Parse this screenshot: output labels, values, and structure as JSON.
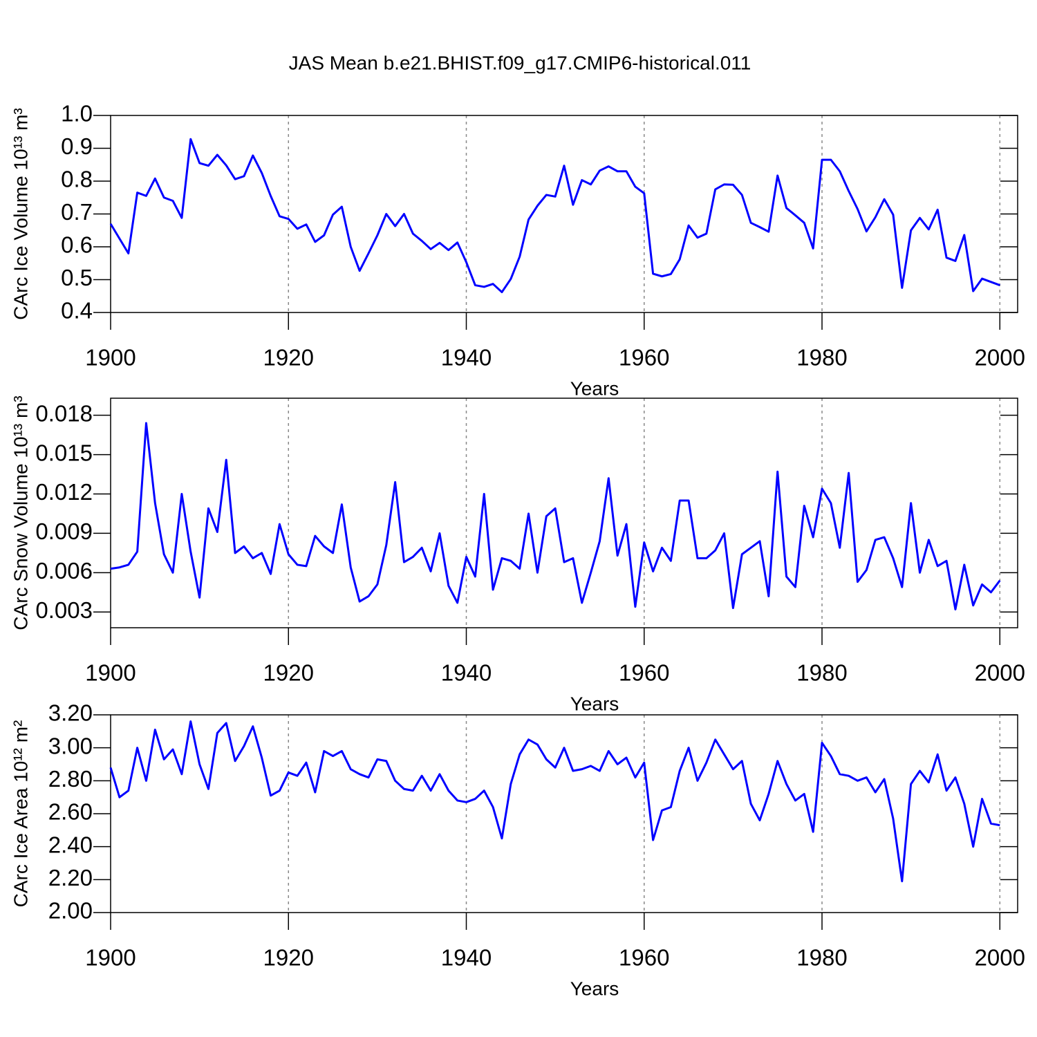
{
  "chart_data": [
    {
      "type": "line",
      "title": "JAS Mean b.e21.BHIST.f09_g17.CMIP6-historical.011",
      "ylabel": "CArc Ice Volume 10¹³ m³",
      "xlabel": "Years",
      "color": "#0000ff",
      "grid": "x",
      "x": [
        1900,
        1901,
        1902,
        1903,
        1904,
        1905,
        1906,
        1907,
        1908,
        1909,
        1910,
        1911,
        1912,
        1913,
        1914,
        1915,
        1916,
        1917,
        1918,
        1919,
        1920,
        1921,
        1922,
        1923,
        1924,
        1925,
        1926,
        1927,
        1928,
        1929,
        1930,
        1931,
        1932,
        1933,
        1934,
        1935,
        1936,
        1937,
        1938,
        1939,
        1940,
        1941,
        1942,
        1943,
        1944,
        1945,
        1946,
        1947,
        1948,
        1949,
        1950,
        1951,
        1952,
        1953,
        1954,
        1955,
        1956,
        1957,
        1958,
        1959,
        1960,
        1961,
        1962,
        1963,
        1964,
        1965,
        1966,
        1967,
        1968,
        1969,
        1970,
        1971,
        1972,
        1973,
        1974,
        1975,
        1976,
        1977,
        1978,
        1979,
        1980,
        1981,
        1982,
        1983,
        1984,
        1985,
        1986,
        1987,
        1988,
        1989,
        1990,
        1991,
        1992,
        1993,
        1994,
        1995,
        1996,
        1997,
        1998,
        1999,
        2000
      ],
      "values": [
        0.67,
        0.625,
        0.58,
        0.765,
        0.755,
        0.808,
        0.75,
        0.74,
        0.688,
        0.928,
        0.855,
        0.847,
        0.88,
        0.848,
        0.806,
        0.815,
        0.878,
        0.825,
        0.755,
        0.693,
        0.685,
        0.655,
        0.668,
        0.615,
        0.635,
        0.698,
        0.722,
        0.6,
        0.527,
        0.58,
        0.635,
        0.7,
        0.663,
        0.7,
        0.64,
        0.618,
        0.593,
        0.612,
        0.59,
        0.613,
        0.553,
        0.483,
        0.478,
        0.487,
        0.462,
        0.502,
        0.57,
        0.683,
        0.725,
        0.758,
        0.753,
        0.847,
        0.728,
        0.803,
        0.79,
        0.832,
        0.845,
        0.83,
        0.83,
        0.783,
        0.763,
        0.518,
        0.51,
        0.517,
        0.562,
        0.665,
        0.628,
        0.64,
        0.775,
        0.79,
        0.789,
        0.758,
        0.673,
        0.66,
        0.646,
        0.817,
        0.718,
        0.696,
        0.673,
        0.595,
        0.865,
        0.865,
        0.83,
        0.77,
        0.715,
        0.647,
        0.69,
        0.745,
        0.698,
        0.475,
        0.65,
        0.688,
        0.653,
        0.713,
        0.567,
        0.557,
        0.636,
        0.465,
        0.503,
        0.493,
        0.483
      ],
      "xlim": [
        1900,
        2002
      ],
      "xticks": [
        1900,
        1920,
        1940,
        1960,
        1980,
        2000
      ],
      "ylim": [
        0.4,
        1.0
      ],
      "yticks": [
        0.4,
        0.5,
        0.6,
        0.7,
        0.8,
        0.9,
        {
          "value": 1,
          "label": "1.0"
        }
      ]
    },
    {
      "type": "line",
      "ylabel": "CArc Snow Volume 10¹³ m³",
      "xlabel": "Years",
      "color": "#0000ff",
      "grid": "x",
      "x": [
        1900,
        1901,
        1902,
        1903,
        1904,
        1905,
        1906,
        1907,
        1908,
        1909,
        1910,
        1911,
        1912,
        1913,
        1914,
        1915,
        1916,
        1917,
        1918,
        1919,
        1920,
        1921,
        1922,
        1923,
        1924,
        1925,
        1926,
        1927,
        1928,
        1929,
        1930,
        1931,
        1932,
        1933,
        1934,
        1935,
        1936,
        1937,
        1938,
        1939,
        1940,
        1941,
        1942,
        1943,
        1944,
        1945,
        1946,
        1947,
        1948,
        1949,
        1950,
        1951,
        1952,
        1953,
        1954,
        1955,
        1956,
        1957,
        1958,
        1959,
        1960,
        1961,
        1962,
        1963,
        1964,
        1965,
        1966,
        1967,
        1968,
        1969,
        1970,
        1971,
        1972,
        1973,
        1974,
        1975,
        1976,
        1977,
        1978,
        1979,
        1980,
        1981,
        1982,
        1983,
        1984,
        1985,
        1986,
        1987,
        1988,
        1989,
        1990,
        1991,
        1992,
        1993,
        1994,
        1995,
        1996,
        1997,
        1998,
        1999,
        2000
      ],
      "values": [
        0.0063,
        0.0064,
        0.0066,
        0.0076,
        0.0174,
        0.0113,
        0.0074,
        0.006,
        0.012,
        0.0076,
        0.0041,
        0.0109,
        0.0091,
        0.0146,
        0.0075,
        0.008,
        0.0071,
        0.0075,
        0.0059,
        0.0097,
        0.0074,
        0.0066,
        0.0065,
        0.0088,
        0.008,
        0.0075,
        0.0112,
        0.0064,
        0.0038,
        0.0042,
        0.0051,
        0.0081,
        0.0129,
        0.0068,
        0.0072,
        0.0079,
        0.0061,
        0.009,
        0.005,
        0.0037,
        0.0072,
        0.0057,
        0.012,
        0.0047,
        0.0071,
        0.0069,
        0.0063,
        0.0105,
        0.006,
        0.0103,
        0.0109,
        0.0068,
        0.0071,
        0.0037,
        0.006,
        0.0084,
        0.0132,
        0.0073,
        0.0097,
        0.0034,
        0.0083,
        0.0061,
        0.0079,
        0.0069,
        0.0115,
        0.0115,
        0.0071,
        0.0071,
        0.0077,
        0.009,
        0.0033,
        0.0074,
        0.0079,
        0.0084,
        0.0042,
        0.0137,
        0.0057,
        0.0049,
        0.0111,
        0.0087,
        0.0124,
        0.0113,
        0.0079,
        0.0136,
        0.0053,
        0.0062,
        0.0085,
        0.0087,
        0.0071,
        0.0049,
        0.0113,
        0.006,
        0.0085,
        0.0065,
        0.0069,
        0.0032,
        0.0066,
        0.0035,
        0.0051,
        0.0045,
        0.0054
      ],
      "xlim": [
        1900,
        2002
      ],
      "xticks": [
        1900,
        1920,
        1940,
        1960,
        1980,
        2000
      ],
      "ylim": [
        0.0018,
        0.0193
      ],
      "yticks": [
        0.003,
        0.006,
        0.009,
        0.012,
        0.015,
        0.018
      ]
    },
    {
      "type": "line",
      "ylabel": "CArc Ice Area 10¹² m²",
      "xlabel": "Years",
      "color": "#0000ff",
      "grid": "x",
      "x": [
        1900,
        1901,
        1902,
        1903,
        1904,
        1905,
        1906,
        1907,
        1908,
        1909,
        1910,
        1911,
        1912,
        1913,
        1914,
        1915,
        1916,
        1917,
        1918,
        1919,
        1920,
        1921,
        1922,
        1923,
        1924,
        1925,
        1926,
        1927,
        1928,
        1929,
        1930,
        1931,
        1932,
        1933,
        1934,
        1935,
        1936,
        1937,
        1938,
        1939,
        1940,
        1941,
        1942,
        1943,
        1944,
        1945,
        1946,
        1947,
        1948,
        1949,
        1950,
        1951,
        1952,
        1953,
        1954,
        1955,
        1956,
        1957,
        1958,
        1959,
        1960,
        1961,
        1962,
        1963,
        1964,
        1965,
        1966,
        1967,
        1968,
        1969,
        1970,
        1971,
        1972,
        1973,
        1974,
        1975,
        1976,
        1977,
        1978,
        1979,
        1980,
        1981,
        1982,
        1983,
        1984,
        1985,
        1986,
        1987,
        1988,
        1989,
        1990,
        1991,
        1992,
        1993,
        1994,
        1995,
        1996,
        1997,
        1998,
        1999,
        2000
      ],
      "values": [
        2.88,
        2.7,
        2.74,
        3.0,
        2.8,
        3.11,
        2.93,
        2.99,
        2.84,
        3.16,
        2.9,
        2.75,
        3.09,
        3.15,
        2.92,
        3.01,
        3.13,
        2.94,
        2.71,
        2.74,
        2.85,
        2.83,
        2.91,
        2.73,
        2.98,
        2.95,
        2.98,
        2.87,
        2.84,
        2.82,
        2.93,
        2.92,
        2.8,
        2.75,
        2.74,
        2.83,
        2.74,
        2.84,
        2.74,
        2.68,
        2.67,
        2.69,
        2.74,
        2.64,
        2.45,
        2.78,
        2.96,
        3.05,
        3.02,
        2.93,
        2.88,
        3.0,
        2.86,
        2.87,
        2.89,
        2.86,
        2.98,
        2.9,
        2.94,
        2.82,
        2.91,
        2.44,
        2.62,
        2.64,
        2.86,
        3.0,
        2.8,
        2.91,
        3.05,
        2.96,
        2.87,
        2.92,
        2.66,
        2.56,
        2.72,
        2.92,
        2.78,
        2.68,
        2.72,
        2.49,
        3.03,
        2.95,
        2.84,
        2.83,
        2.8,
        2.82,
        2.73,
        2.81,
        2.57,
        2.19,
        2.78,
        2.86,
        2.79,
        2.96,
        2.74,
        2.82,
        2.66,
        2.4,
        2.69,
        2.54,
        2.53
      ],
      "xlim": [
        1900,
        2002
      ],
      "xticks": [
        1900,
        1920,
        1940,
        1960,
        1980,
        2000
      ],
      "ylim": [
        2.0,
        3.2
      ],
      "yticks": [
        {
          "value": 2,
          "label": "2.00"
        },
        {
          "value": 2.2,
          "label": "2.20"
        },
        {
          "value": 2.4,
          "label": "2.40"
        },
        {
          "value": 2.6,
          "label": "2.60"
        },
        {
          "value": 2.8,
          "label": "2.80"
        },
        {
          "value": 3,
          "label": "3.00"
        },
        {
          "value": 3.2,
          "label": "3.20"
        }
      ]
    }
  ]
}
